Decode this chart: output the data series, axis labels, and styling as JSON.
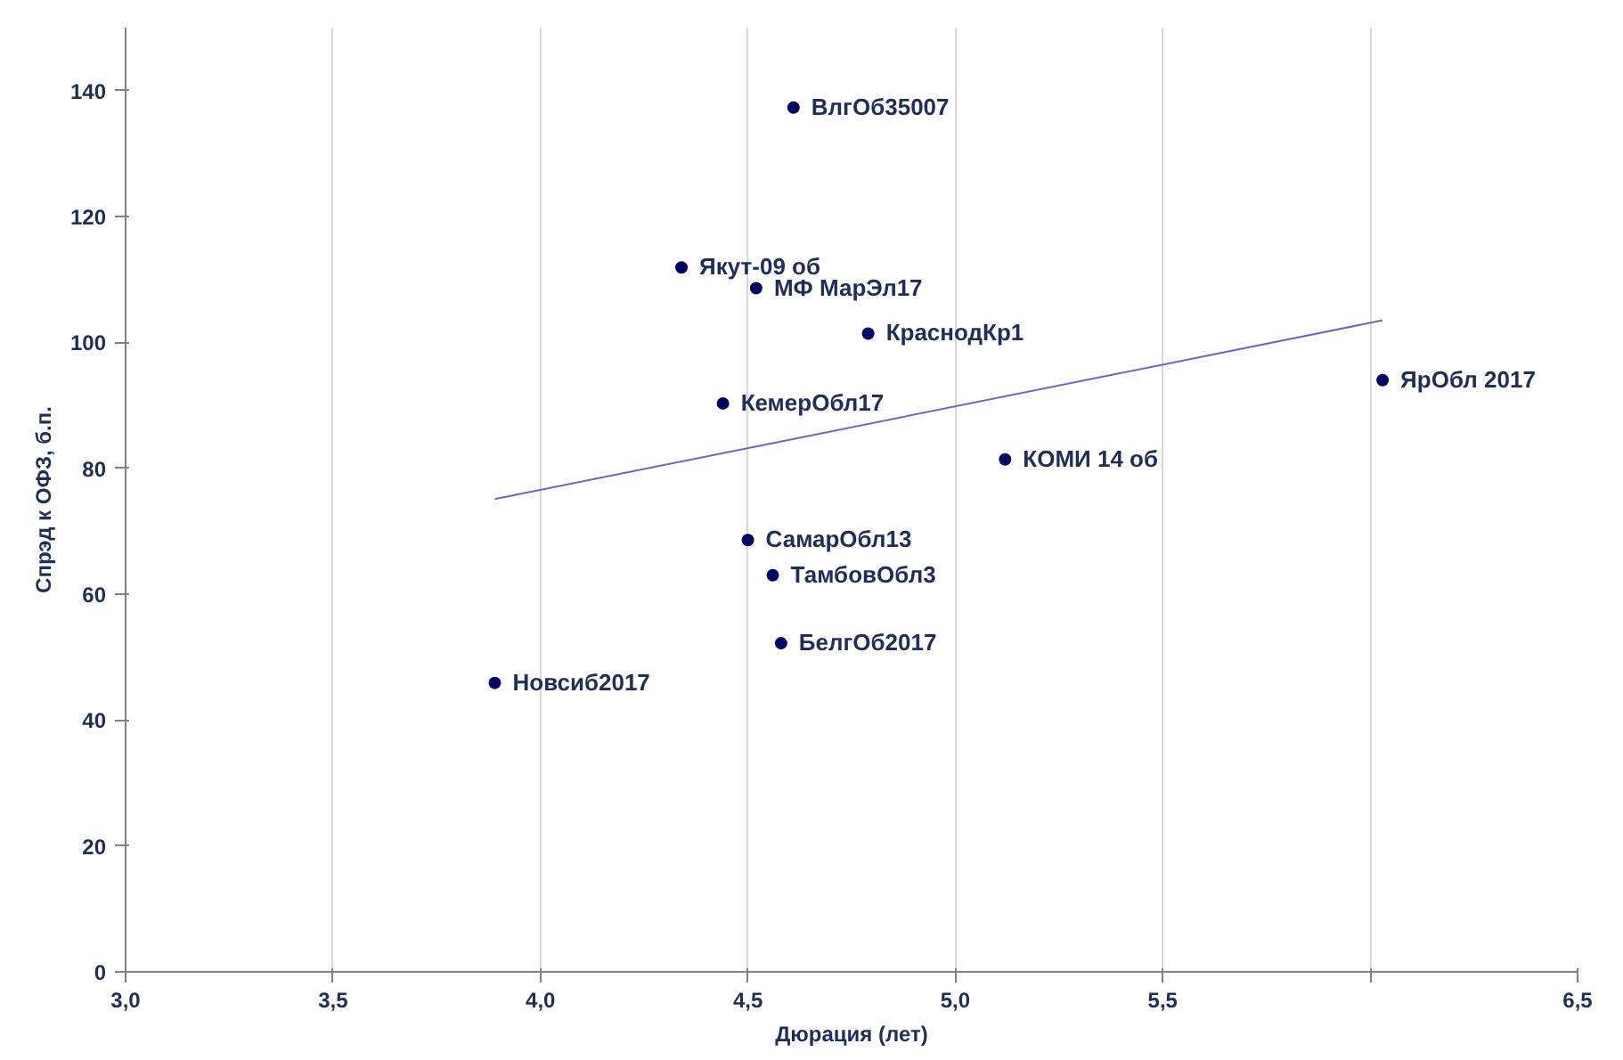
{
  "chart_data": {
    "type": "scatter",
    "xlabel": "Дюрация (лет)",
    "ylabel": "Спрэд к ОФЗ, б.п.",
    "xlim": [
      3.0,
      6.5
    ],
    "ylim": [
      0,
      150
    ],
    "xticks": [
      {
        "value": 3.0,
        "label": "3,0"
      },
      {
        "value": 3.5,
        "label": "3,5"
      },
      {
        "value": 4.0,
        "label": "4,0"
      },
      {
        "value": 4.5,
        "label": "4,5"
      },
      {
        "value": 5.0,
        "label": "5,0"
      },
      {
        "value": 5.5,
        "label": "5,5"
      },
      {
        "value": 6.0,
        "label": null
      },
      {
        "value": 6.5,
        "label": "6,5"
      }
    ],
    "yticks": [
      0,
      20,
      40,
      60,
      80,
      100,
      120,
      140
    ],
    "grid": "x",
    "marker": "circle",
    "series": [
      {
        "color": "#000066",
        "x": [
          4.61,
          4.34,
          4.52,
          4.79,
          6.03,
          4.44,
          5.12,
          4.5,
          4.56,
          4.58,
          3.89
        ],
        "values": [
          137.3,
          111.9,
          108.6,
          101.4,
          94.0,
          90.3,
          81.4,
          68.6,
          63.0,
          52.2,
          45.9
        ]
      },
      {
        "type": "line",
        "marker": "none",
        "color": "#6666cc",
        "x": [
          3.89,
          6.03
        ],
        "values": [
          75.1,
          103.5
        ]
      }
    ],
    "annotations": [
      {
        "text": "ВлгОб35007",
        "x": 4.61,
        "y": 137.3
      },
      {
        "text": "Якут-09 об",
        "x": 4.34,
        "y": 111.9
      },
      {
        "text": "МФ МарЭл17",
        "x": 4.52,
        "y": 108.6
      },
      {
        "text": "КраснодКр1",
        "x": 4.79,
        "y": 101.4
      },
      {
        "text": "ЯрОбл 2017",
        "x": 6.03,
        "y": 94.0
      },
      {
        "text": "КемерОбл17",
        "x": 4.44,
        "y": 90.3
      },
      {
        "text": "КОМИ 14 об",
        "x": 5.12,
        "y": 81.4
      },
      {
        "text": "СамарОбл13",
        "x": 4.5,
        "y": 68.6
      },
      {
        "text": "ТамбовОбл3",
        "x": 4.56,
        "y": 63.0
      },
      {
        "text": "БелгОб2017",
        "x": 4.58,
        "y": 52.2
      },
      {
        "text": "Новсиб2017",
        "x": 3.89,
        "y": 45.9
      }
    ]
  }
}
